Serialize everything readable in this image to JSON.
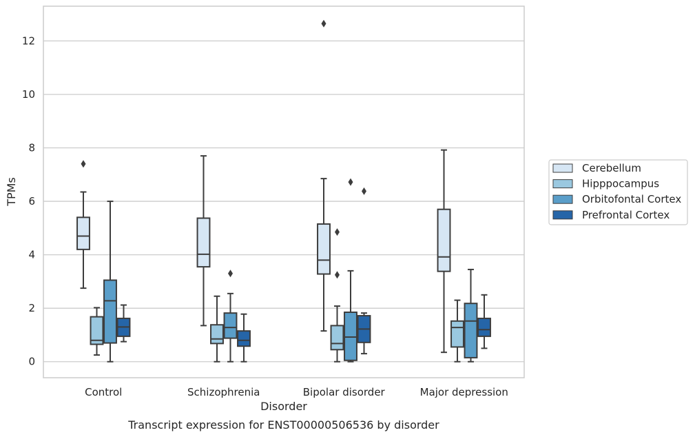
{
  "chart_data": {
    "type": "boxplot",
    "xlabel": "Disorder",
    "ylabel": "TPMs",
    "caption": "Transcript expression for ENST00000506536 by disorder",
    "ylim": [
      -0.6,
      13.3
    ],
    "yticks": [
      0,
      2,
      4,
      6,
      8,
      10,
      12
    ],
    "grid": "horizontal",
    "legend_position": "right",
    "categories": [
      "Control",
      "Schizophrenia",
      "Bipolar disorder",
      "Major depression"
    ],
    "series": [
      {
        "name": "Cerebellum",
        "color": "#d6e6f4",
        "boxes": [
          {
            "whislo": 2.75,
            "q1": 4.2,
            "med": 4.7,
            "q3": 5.4,
            "whishi": 6.35,
            "fliers": [
              7.4
            ]
          },
          {
            "whislo": 1.35,
            "q1": 3.55,
            "med": 4.02,
            "q3": 5.37,
            "whishi": 7.7,
            "fliers": []
          },
          {
            "whislo": 1.15,
            "q1": 3.28,
            "med": 3.8,
            "q3": 5.15,
            "whishi": 6.85,
            "fliers": [
              12.65
            ]
          },
          {
            "whislo": 0.35,
            "q1": 3.38,
            "med": 3.92,
            "q3": 5.7,
            "whishi": 7.92,
            "fliers": []
          }
        ]
      },
      {
        "name": "Hipppocampus",
        "color": "#9ac8e0",
        "boxes": [
          {
            "whislo": 0.25,
            "q1": 0.65,
            "med": 0.8,
            "q3": 1.68,
            "whishi": 2.02,
            "fliers": []
          },
          {
            "whislo": 0.0,
            "q1": 0.68,
            "med": 0.85,
            "q3": 1.38,
            "whishi": 2.45,
            "fliers": []
          },
          {
            "whislo": 0.0,
            "q1": 0.45,
            "med": 0.68,
            "q3": 1.35,
            "whishi": 2.08,
            "fliers": [
              4.85,
              3.25
            ]
          },
          {
            "whislo": 0.0,
            "q1": 0.55,
            "med": 1.28,
            "q3": 1.52,
            "whishi": 2.3,
            "fliers": []
          }
        ]
      },
      {
        "name": "Orbitofontal Cortex",
        "color": "#5a9ec9",
        "boxes": [
          {
            "whislo": 0.0,
            "q1": 0.7,
            "med": 2.28,
            "q3": 3.05,
            "whishi": 6.0,
            "fliers": []
          },
          {
            "whislo": 0.0,
            "q1": 0.88,
            "med": 1.28,
            "q3": 1.82,
            "whishi": 2.55,
            "fliers": [
              3.3
            ]
          },
          {
            "whislo": 0.0,
            "q1": 0.05,
            "med": 0.92,
            "q3": 1.85,
            "whishi": 3.4,
            "fliers": [
              6.72
            ]
          },
          {
            "whislo": 0.0,
            "q1": 0.15,
            "med": 1.52,
            "q3": 2.18,
            "whishi": 3.45,
            "fliers": []
          }
        ]
      },
      {
        "name": "Prefrontal Cortex",
        "color": "#2565a8",
        "boxes": [
          {
            "whislo": 0.75,
            "q1": 0.95,
            "med": 1.3,
            "q3": 1.62,
            "whishi": 2.12,
            "fliers": []
          },
          {
            "whislo": 0.0,
            "q1": 0.58,
            "med": 0.8,
            "q3": 1.15,
            "whishi": 1.78,
            "fliers": []
          },
          {
            "whislo": 0.3,
            "q1": 0.72,
            "med": 1.22,
            "q3": 1.72,
            "whishi": 1.82,
            "fliers": [
              6.38
            ]
          },
          {
            "whislo": 0.5,
            "q1": 0.95,
            "med": 1.2,
            "q3": 1.62,
            "whishi": 2.5,
            "fliers": []
          }
        ]
      }
    ]
  }
}
